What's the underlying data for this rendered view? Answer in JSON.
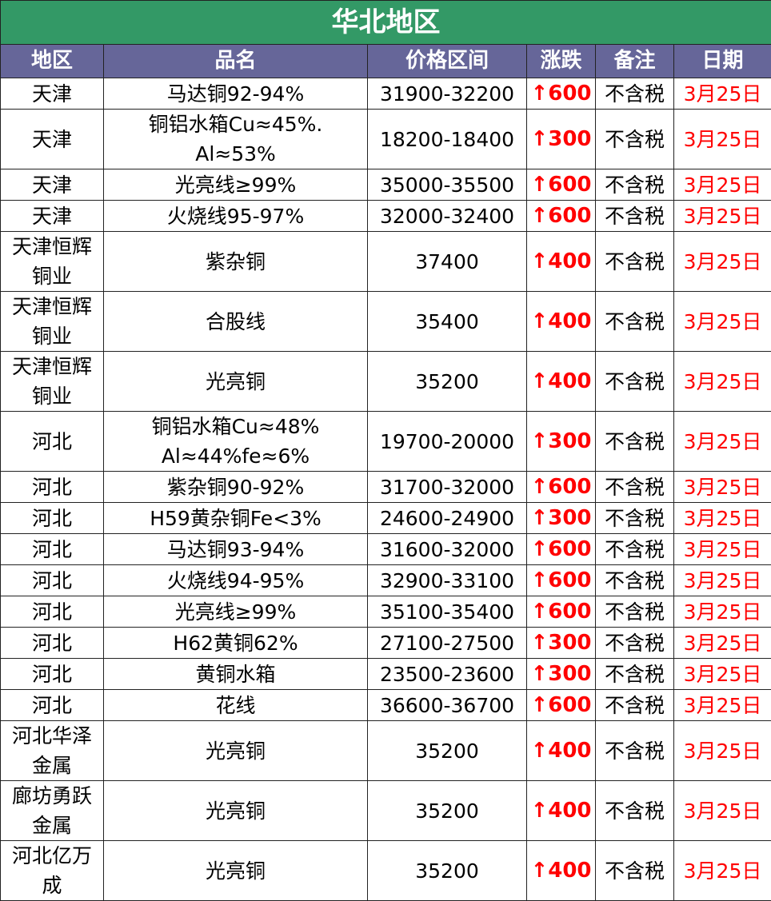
{
  "title": "华北地区",
  "columns": [
    "地区",
    "品名",
    "价格区间",
    "涨跌",
    "备注",
    "日期"
  ],
  "colors": {
    "title_bg": "#339966",
    "header_bg": "#666699",
    "up": "#ff0000"
  },
  "rows": [
    {
      "region": "天津",
      "product": "马达铜92-94%",
      "price": "31900-32200",
      "change": "↑600",
      "note": "不含税",
      "date": "3月25日"
    },
    {
      "region": "天津",
      "product": "铜铝水箱Cu≈45%.\nAl≈53%",
      "price": "18200-18400",
      "change": "↑300",
      "note": "不含税",
      "date": "3月25日"
    },
    {
      "region": "天津",
      "product": "光亮线≥99%",
      "price": "35000-35500",
      "change": "↑600",
      "note": "不含税",
      "date": "3月25日"
    },
    {
      "region": "天津",
      "product": "火烧线95-97%",
      "price": "32000-32400",
      "change": "↑600",
      "note": "不含税",
      "date": "3月25日"
    },
    {
      "region": "天津恒辉\n铜业",
      "product": "紫杂铜",
      "price": "37400",
      "change": "↑400",
      "note": "不含税",
      "date": "3月25日"
    },
    {
      "region": "天津恒辉\n铜业",
      "product": "合股线",
      "price": "35400",
      "change": "↑400",
      "note": "不含税",
      "date": "3月25日"
    },
    {
      "region": "天津恒辉\n铜业",
      "product": "光亮铜",
      "price": "35200",
      "change": "↑400",
      "note": "不含税",
      "date": "3月25日"
    },
    {
      "region": "河北",
      "product": "铜铝水箱Cu≈48%\nAl≈44%fe≈6%",
      "price": "19700-20000",
      "change": "↑300",
      "note": "不含税",
      "date": "3月25日"
    },
    {
      "region": "河北",
      "product": "紫杂铜90-92%",
      "price": "31700-32000",
      "change": "↑600",
      "note": "不含税",
      "date": "3月25日"
    },
    {
      "region": "河北",
      "product": "H59黄杂铜Fe<3%",
      "price": "24600-24900",
      "change": "↑300",
      "note": "不含税",
      "date": "3月25日"
    },
    {
      "region": "河北",
      "product": "马达铜93-94%",
      "price": "31600-32000",
      "change": "↑600",
      "note": "不含税",
      "date": "3月25日"
    },
    {
      "region": "河北",
      "product": "火烧线94-95%",
      "price": "32900-33100",
      "change": "↑600",
      "note": "不含税",
      "date": "3月25日"
    },
    {
      "region": "河北",
      "product": "光亮线≥99%",
      "price": "35100-35400",
      "change": "↑600",
      "note": "不含税",
      "date": "3月25日"
    },
    {
      "region": "河北",
      "product": "H62黄铜62%",
      "price": "27100-27500",
      "change": "↑300",
      "note": "不含税",
      "date": "3月25日"
    },
    {
      "region": "河北",
      "product": "黄铜水箱",
      "price": "23500-23600",
      "change": "↑300",
      "note": "不含税",
      "date": "3月25日"
    },
    {
      "region": "河北",
      "product": "花线",
      "price": "36600-36700",
      "change": "↑600",
      "note": "不含税",
      "date": "3月25日"
    },
    {
      "region": "河北华泽\n金属",
      "product": "光亮铜",
      "price": "35200",
      "change": "↑400",
      "note": "不含税",
      "date": "3月25日"
    },
    {
      "region": "廊坊勇跃\n金属",
      "product": "光亮铜",
      "price": "35200",
      "change": "↑400",
      "note": "不含税",
      "date": "3月25日"
    },
    {
      "region": "河北亿万\n成",
      "product": "光亮铜",
      "price": "35200",
      "change": "↑400",
      "note": "不含税",
      "date": "3月25日"
    }
  ]
}
